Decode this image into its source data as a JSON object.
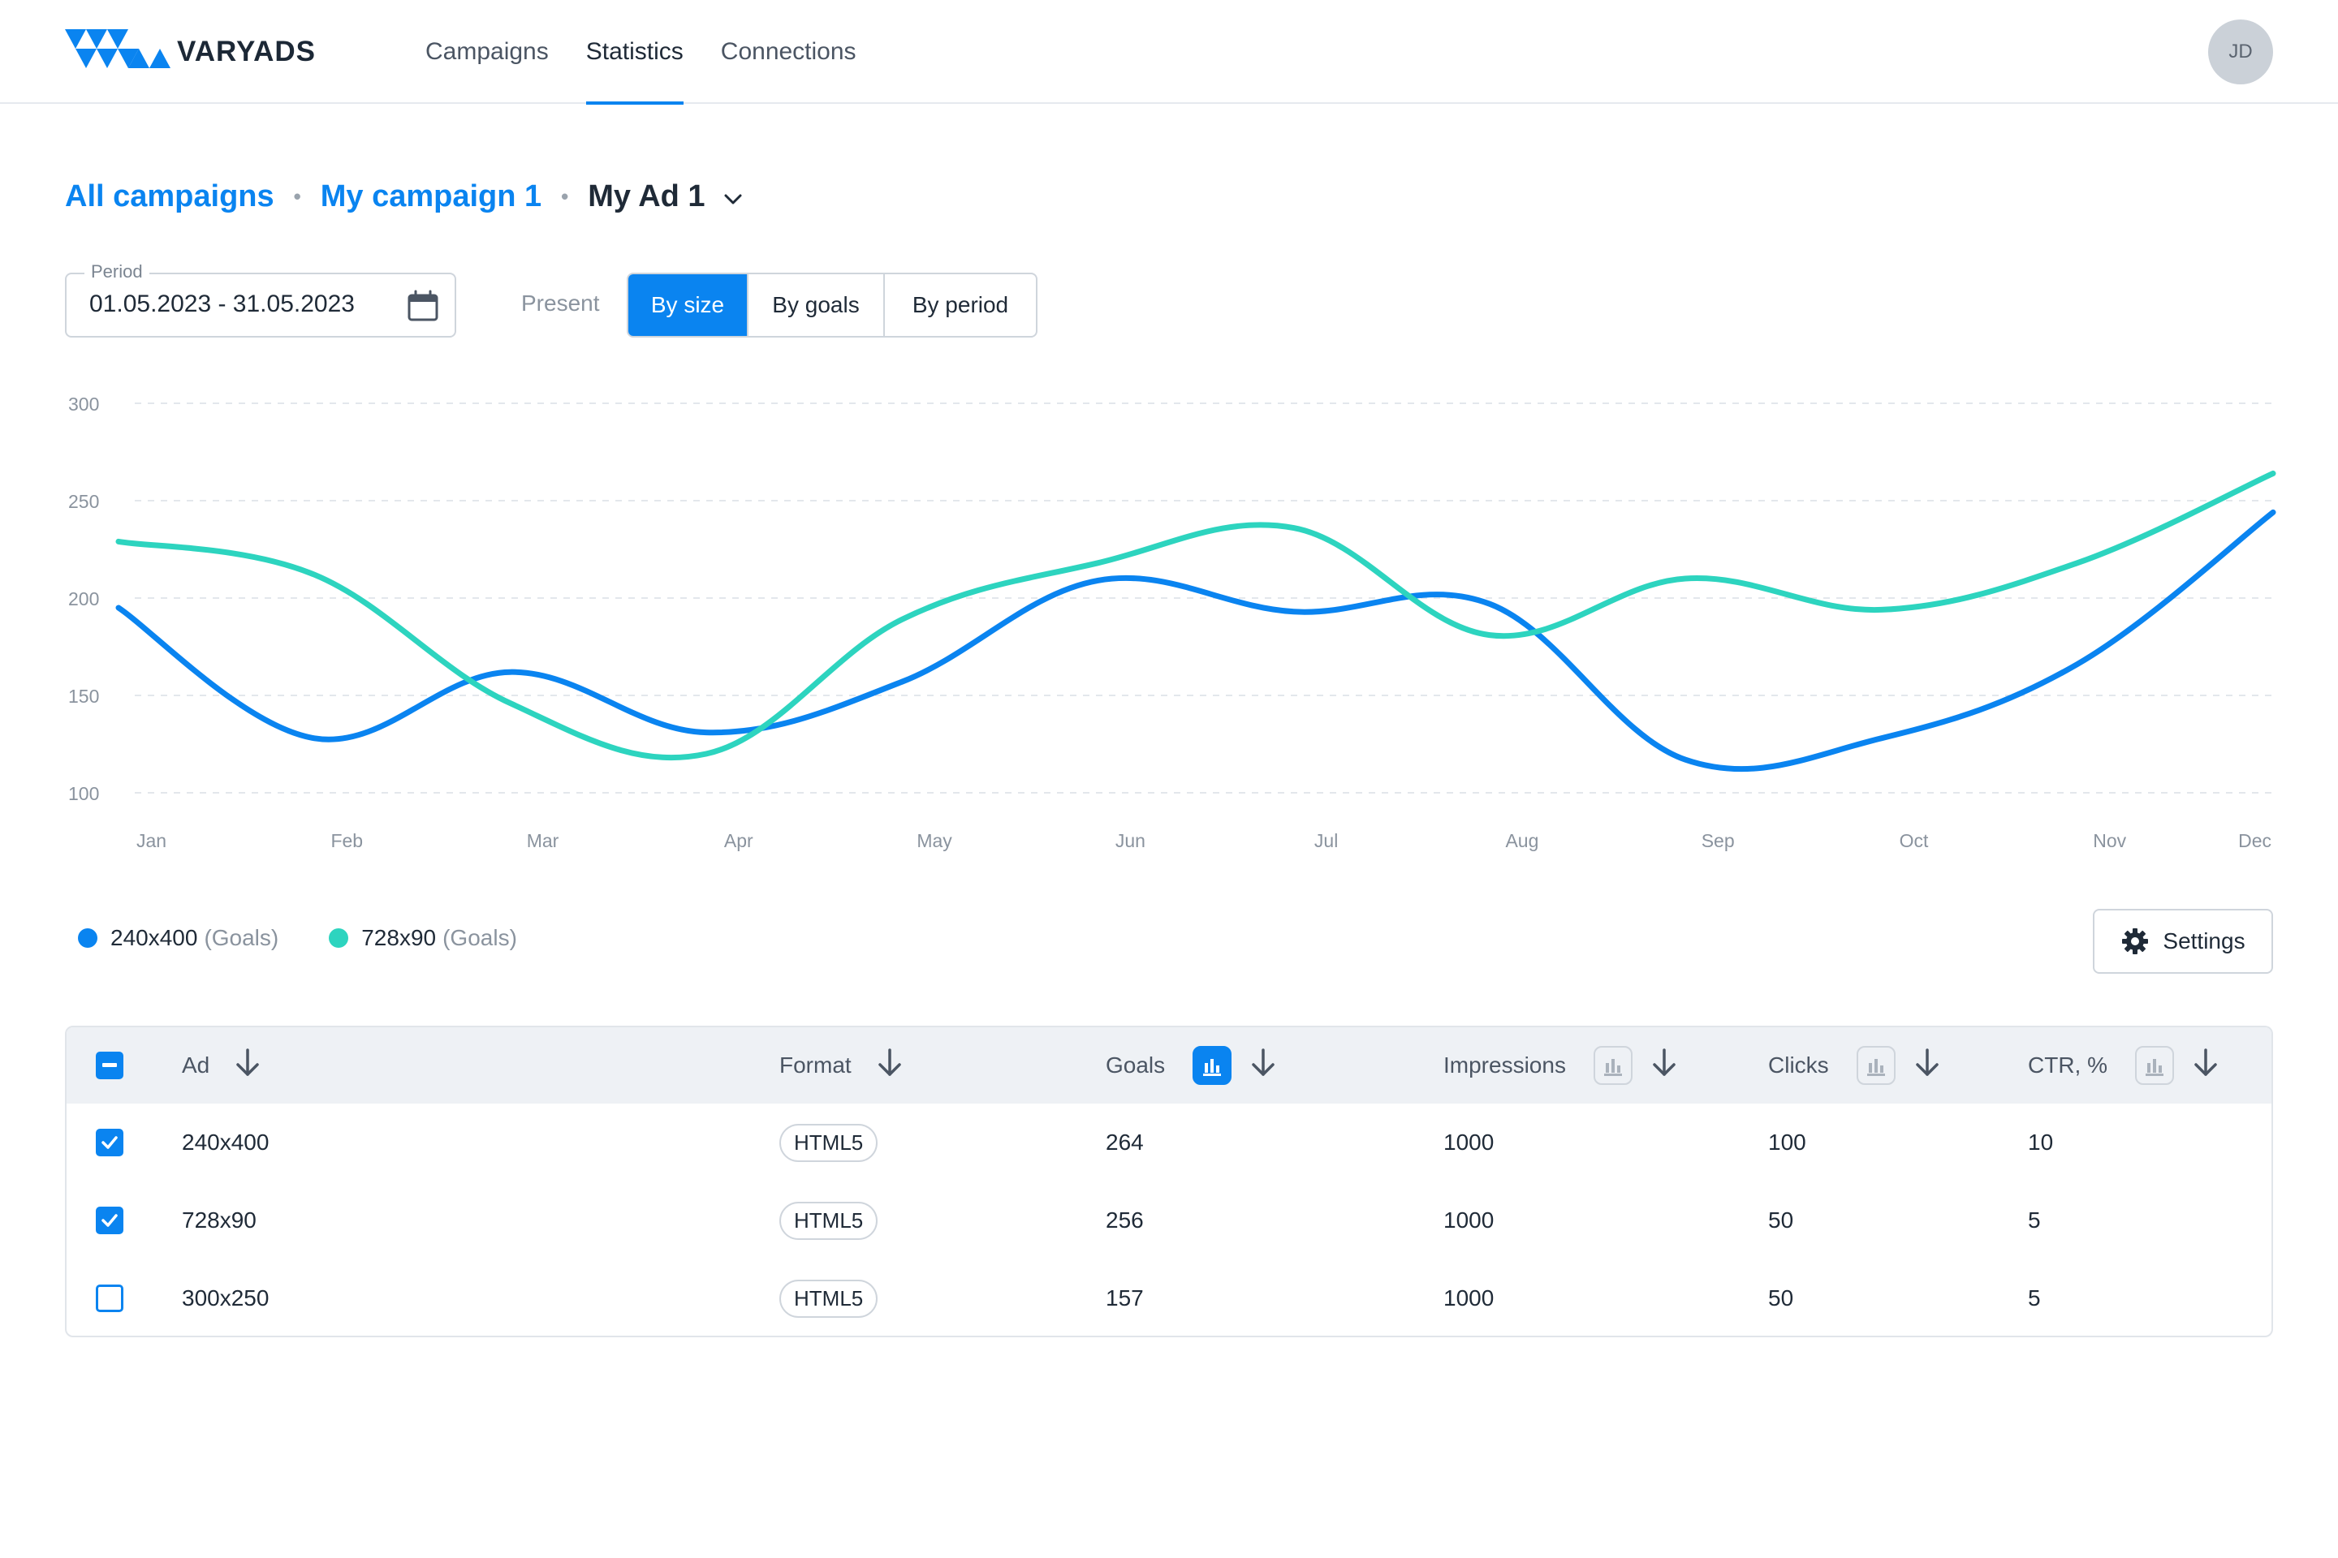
{
  "header": {
    "brand": "VARYADS",
    "nav": [
      {
        "label": "Campaigns",
        "active": false
      },
      {
        "label": "Statistics",
        "active": true
      },
      {
        "label": "Connections",
        "active": false
      }
    ],
    "avatar_initials": "JD"
  },
  "breadcrumb": {
    "items": [
      "All campaigns",
      "My campaign 1"
    ],
    "current": "My Ad 1"
  },
  "controls": {
    "period_label": "Period",
    "period_value": "01.05.2023 - 31.05.2023",
    "present_label": "Present",
    "present_options": [
      "By size",
      "By goals",
      "By period"
    ],
    "present_selected": "By size"
  },
  "chart_data": {
    "type": "line",
    "categories": [
      "Jan",
      "Feb",
      "Mar",
      "Apr",
      "May",
      "Jun",
      "Jul",
      "Aug",
      "Sep",
      "Oct",
      "Nov",
      "Dec"
    ],
    "yticks": [
      100,
      150,
      200,
      250,
      300
    ],
    "ylim": [
      100,
      300
    ],
    "grid": true,
    "series": [
      {
        "name": "240x400",
        "metric": "(Goals)",
        "color": "#0a84f0",
        "values": [
          195,
          128,
          162,
          131,
          157,
          209,
          193,
          197,
          117,
          128,
          166,
          244
        ]
      },
      {
        "name": "728x90",
        "metric": "(Goals)",
        "color": "#2dd4bf",
        "values": [
          229,
          212,
          146,
          120,
          189,
          218,
          236,
          181,
          210,
          194,
          218,
          264
        ]
      }
    ]
  },
  "settings_label": "Settings",
  "table": {
    "columns": [
      {
        "key": "ad",
        "label": "Ad",
        "chart_toggle": null
      },
      {
        "key": "format",
        "label": "Format",
        "chart_toggle": null
      },
      {
        "key": "goals",
        "label": "Goals",
        "chart_toggle": true
      },
      {
        "key": "impressions",
        "label": "Impressions",
        "chart_toggle": false
      },
      {
        "key": "clicks",
        "label": "Clicks",
        "chart_toggle": false
      },
      {
        "key": "ctr",
        "label": "CTR, %",
        "chart_toggle": false
      }
    ],
    "rows": [
      {
        "checked": true,
        "ad": "240x400",
        "format": "HTML5",
        "goals": "264",
        "impressions": "1000",
        "clicks": "100",
        "ctr": "10"
      },
      {
        "checked": true,
        "ad": "728x90",
        "format": "HTML5",
        "goals": "256",
        "impressions": "1000",
        "clicks": "50",
        "ctr": "5"
      },
      {
        "checked": false,
        "ad": "300x250",
        "format": "HTML5",
        "goals": "157",
        "impressions": "1000",
        "clicks": "50",
        "ctr": "5"
      }
    ]
  }
}
